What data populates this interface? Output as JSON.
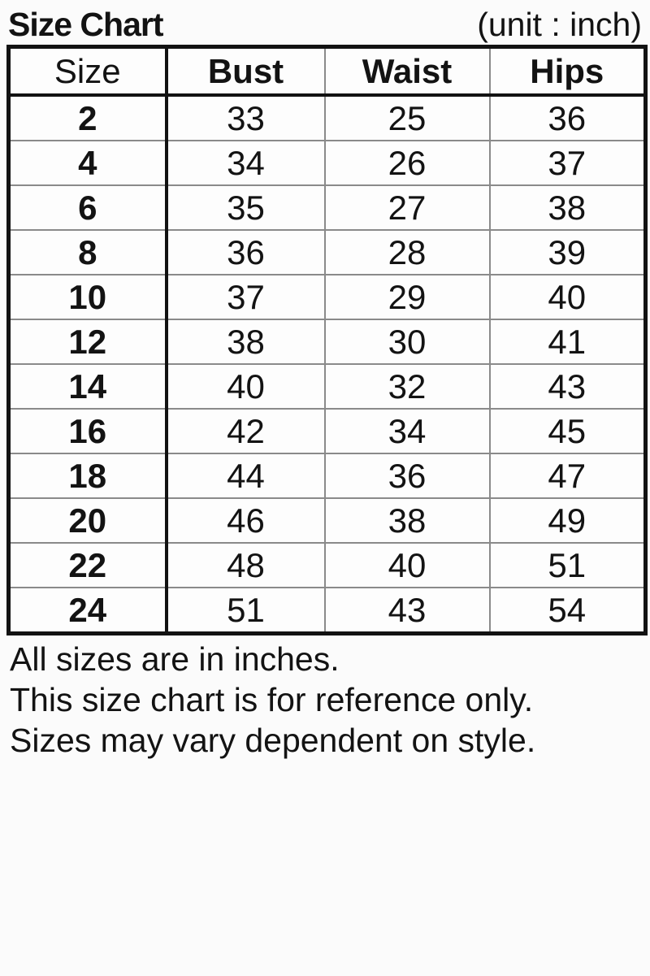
{
  "page": {
    "title": "Size Chart",
    "unit_label": "(unit : inch)"
  },
  "table": {
    "columns": [
      "Size",
      "Bust",
      "Waist",
      "Hips"
    ],
    "rows": [
      [
        "2",
        "33",
        "25",
        "36"
      ],
      [
        "4",
        "34",
        "26",
        "37"
      ],
      [
        "6",
        "35",
        "27",
        "38"
      ],
      [
        "8",
        "36",
        "28",
        "39"
      ],
      [
        "10",
        "37",
        "29",
        "40"
      ],
      [
        "12",
        "38",
        "30",
        "41"
      ],
      [
        "14",
        "40",
        "32",
        "43"
      ],
      [
        "16",
        "42",
        "34",
        "45"
      ],
      [
        "18",
        "44",
        "36",
        "47"
      ],
      [
        "20",
        "46",
        "38",
        "49"
      ],
      [
        "22",
        "48",
        "40",
        "51"
      ],
      [
        "24",
        "51",
        "43",
        "54"
      ]
    ]
  },
  "notes": {
    "lines": [
      "All sizes are in inches.",
      "This size chart is for reference only.",
      "Sizes may vary dependent on style."
    ]
  },
  "colors": {
    "background": "#fbfbfb",
    "text": "#131313",
    "border_strong": "#121212",
    "grid_light": "#8a8a8a"
  },
  "chart_data": {
    "type": "table",
    "title": "Size Chart",
    "unit": "inch",
    "columns": [
      "Size",
      "Bust",
      "Waist",
      "Hips"
    ],
    "rows": [
      [
        2,
        33,
        25,
        36
      ],
      [
        4,
        34,
        26,
        37
      ],
      [
        6,
        35,
        27,
        38
      ],
      [
        8,
        36,
        28,
        39
      ],
      [
        10,
        37,
        29,
        40
      ],
      [
        12,
        38,
        30,
        41
      ],
      [
        14,
        40,
        32,
        43
      ],
      [
        16,
        42,
        34,
        45
      ],
      [
        18,
        44,
        36,
        47
      ],
      [
        20,
        46,
        38,
        49
      ],
      [
        22,
        48,
        40,
        51
      ],
      [
        24,
        51,
        43,
        54
      ]
    ],
    "annotations": [
      "All sizes are in inches.",
      "This size chart is for reference only.",
      "Sizes may vary dependent on style."
    ]
  }
}
